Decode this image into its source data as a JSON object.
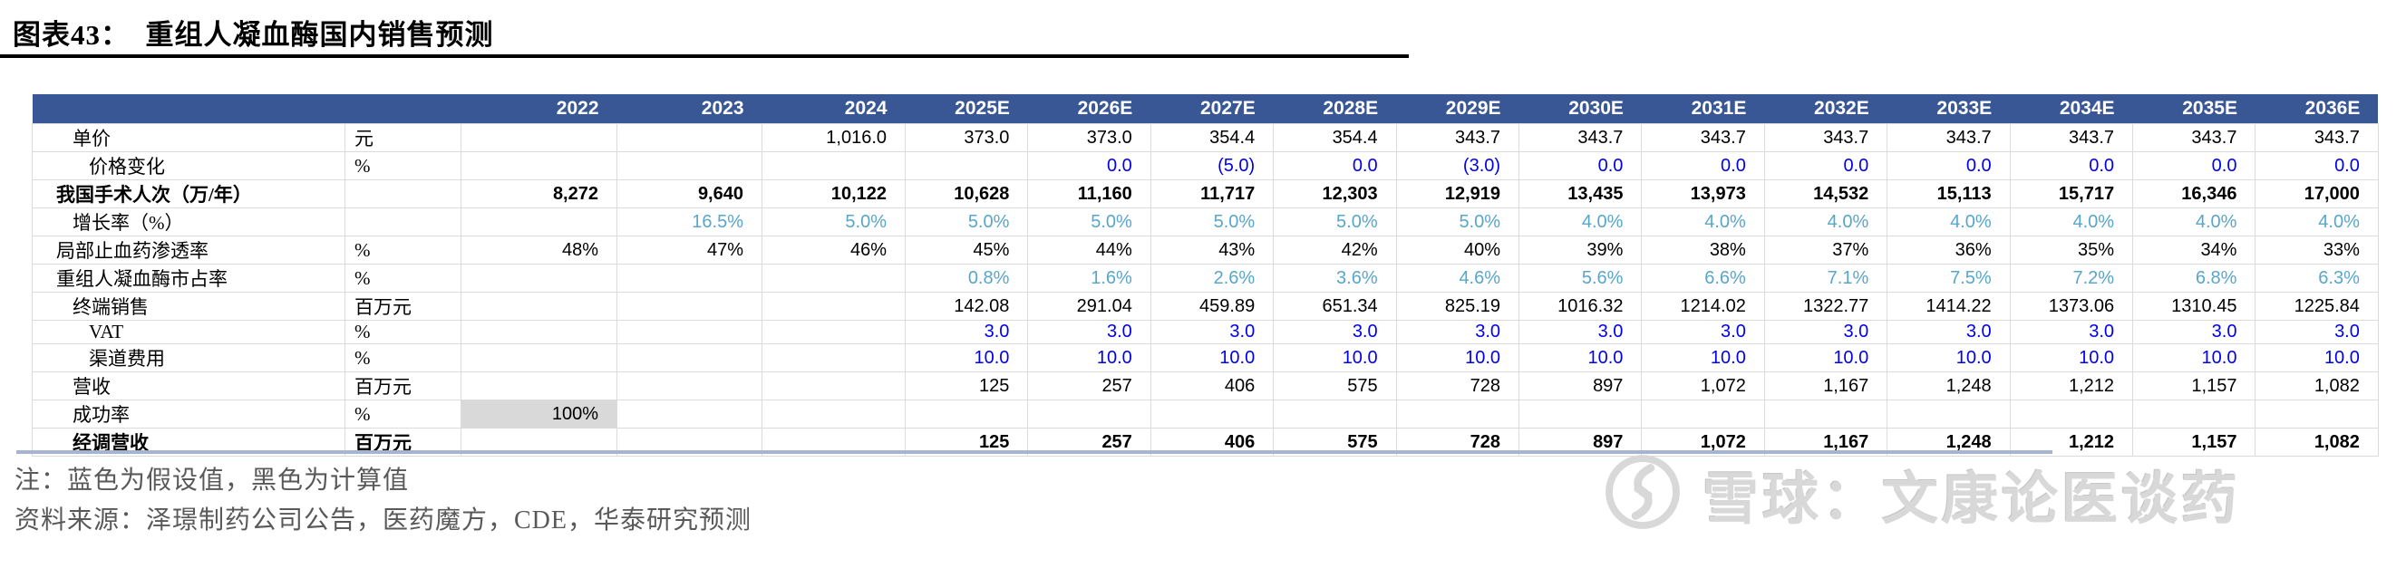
{
  "figure": {
    "title": "图表43：  重组人凝血酶国内销售预测"
  },
  "table": {
    "year_headers": [
      "2022",
      "2023",
      "2024",
      "2025E",
      "2026E",
      "2027E",
      "2028E",
      "2029E",
      "2030E",
      "2031E",
      "2032E",
      "2033E",
      "2034E",
      "2035E",
      "2036E"
    ],
    "rows": [
      {
        "label": "单价",
        "unit": "元",
        "indent": 1,
        "color": "black",
        "bold": false,
        "values": [
          "",
          "",
          "1,016.0",
          "373.0",
          "373.0",
          "354.4",
          "354.4",
          "343.7",
          "343.7",
          "343.7",
          "343.7",
          "343.7",
          "343.7",
          "343.7",
          "343.7"
        ]
      },
      {
        "label": "价格变化",
        "unit": "%",
        "indent": 2,
        "color": "blue",
        "bold": false,
        "values": [
          "",
          "",
          "",
          "",
          "0.0",
          "(5.0)",
          "0.0",
          "(3.0)",
          "0.0",
          "0.0",
          "0.0",
          "0.0",
          "0.0",
          "0.0",
          "0.0"
        ]
      },
      {
        "label": "我国手术人次（万/年）",
        "unit": "",
        "indent": 0,
        "color": "black",
        "bold": true,
        "values": [
          "8,272",
          "9,640",
          "10,122",
          "10,628",
          "11,160",
          "11,717",
          "12,303",
          "12,919",
          "13,435",
          "13,973",
          "14,532",
          "15,113",
          "15,717",
          "16,346",
          "17,000"
        ]
      },
      {
        "label": "增长率（%）",
        "unit": "",
        "indent": 1,
        "color": "cyan",
        "bold": false,
        "values": [
          "",
          "16.5%",
          "5.0%",
          "5.0%",
          "5.0%",
          "5.0%",
          "5.0%",
          "5.0%",
          "4.0%",
          "4.0%",
          "4.0%",
          "4.0%",
          "4.0%",
          "4.0%",
          "4.0%"
        ]
      },
      {
        "label": "局部止血药渗透率",
        "unit": "%",
        "indent": 0,
        "color": "black",
        "bold": false,
        "values": [
          "48%",
          "47%",
          "46%",
          "45%",
          "44%",
          "43%",
          "42%",
          "40%",
          "39%",
          "38%",
          "37%",
          "36%",
          "35%",
          "34%",
          "33%"
        ]
      },
      {
        "label": "重组人凝血酶市占率",
        "unit": "%",
        "indent": 0,
        "color": "cyan",
        "bold": false,
        "values": [
          "",
          "",
          "",
          "0.8%",
          "1.6%",
          "2.6%",
          "3.6%",
          "4.6%",
          "5.6%",
          "6.6%",
          "7.1%",
          "7.5%",
          "7.2%",
          "6.8%",
          "6.3%"
        ]
      },
      {
        "label": "终端销售",
        "unit": "百万元",
        "indent": 1,
        "color": "black",
        "bold": false,
        "values": [
          "",
          "",
          "",
          "142.08",
          "291.04",
          "459.89",
          "651.34",
          "825.19",
          "1016.32",
          "1214.02",
          "1322.77",
          "1414.22",
          "1373.06",
          "1310.45",
          "1225.84"
        ]
      },
      {
        "label": "VAT",
        "unit": "%",
        "indent": 2,
        "color": "blue",
        "bold": false,
        "values": [
          "",
          "",
          "",
          "3.0",
          "3.0",
          "3.0",
          "3.0",
          "3.0",
          "3.0",
          "3.0",
          "3.0",
          "3.0",
          "3.0",
          "3.0",
          "3.0"
        ]
      },
      {
        "label": "渠道费用",
        "unit": "%",
        "indent": 2,
        "color": "blue",
        "bold": false,
        "values": [
          "",
          "",
          "",
          "10.0",
          "10.0",
          "10.0",
          "10.0",
          "10.0",
          "10.0",
          "10.0",
          "10.0",
          "10.0",
          "10.0",
          "10.0",
          "10.0"
        ]
      },
      {
        "label": "营收",
        "unit": "百万元",
        "indent": 1,
        "color": "black",
        "bold": false,
        "values": [
          "",
          "",
          "",
          "125",
          "257",
          "406",
          "575",
          "728",
          "897",
          "1,072",
          "1,167",
          "1,248",
          "1,212",
          "1,157",
          "1,082"
        ]
      },
      {
        "label": "成功率",
        "unit": "%",
        "indent": 1,
        "color": "black",
        "bold": false,
        "gray_cells": [
          0
        ],
        "values": [
          "100%",
          "",
          "",
          "",
          "",
          "",
          "",
          "",
          "",
          "",
          "",
          "",
          "",
          "",
          ""
        ]
      },
      {
        "label": "经调营收",
        "unit": "百万元",
        "indent": 1,
        "color": "black",
        "bold": true,
        "values": [
          "",
          "",
          "",
          "125",
          "257",
          "406",
          "575",
          "728",
          "897",
          "1,072",
          "1,167",
          "1,248",
          "1,212",
          "1,157",
          "1,082"
        ]
      }
    ]
  },
  "notes": {
    "note": "注：蓝色为假设值，黑色为计算值",
    "source": "资料来源：泽璟制药公司公告，医药魔方，CDE，华泰研究预测"
  },
  "watermark": {
    "logo": "xueqiu-snowball-logo",
    "text": "雪球：文康论医谈药"
  },
  "colors": {
    "header_bg": "#3A5795",
    "assumption_blue": "#0000EE",
    "growth_cyan": "#58A6CA",
    "gray_cell": "#D9D9D9",
    "grid_line": "#DBDBDB",
    "note_gray": "#595959",
    "divider_blue": "#A6B4D3",
    "watermark_gray": "#D8D8D8"
  }
}
